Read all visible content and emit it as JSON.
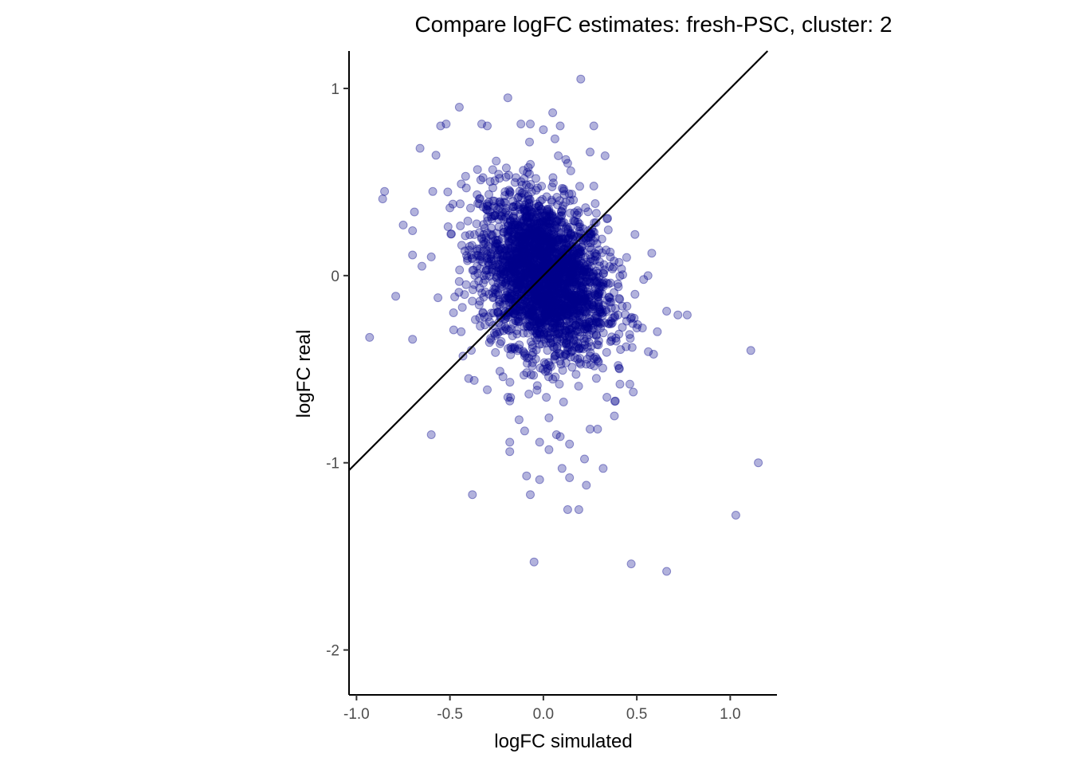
{
  "chart_data": {
    "type": "scatter",
    "title": "Compare logFC estimates: fresh-PSC, cluster: 2",
    "xlabel": "logFC simulated",
    "ylabel": "logFC real",
    "xlim": [
      -1.04,
      1.25
    ],
    "ylim": [
      -2.24,
      1.2
    ],
    "x_ticks": [
      -1.0,
      -0.5,
      0.0,
      0.5,
      1.0
    ],
    "x_tick_labels": [
      "-1.0",
      "-0.5",
      "0.0",
      "0.5",
      "1.0"
    ],
    "y_ticks": [
      -2,
      -1,
      0,
      1
    ],
    "y_tick_labels": [
      "-2",
      "-1",
      "0",
      "1"
    ],
    "grid": false,
    "legend": "none",
    "reference_line": {
      "slope": 1,
      "intercept": 0
    },
    "point_color": "#00008B",
    "point_alpha": 0.3,
    "line_color": "#000000",
    "outlier_points": [
      [
        0.2,
        1.05
      ],
      [
        -0.19,
        0.95
      ],
      [
        -0.45,
        0.9
      ],
      [
        0.05,
        0.87
      ],
      [
        -0.55,
        0.8
      ],
      [
        -0.52,
        0.81
      ],
      [
        -0.33,
        0.81
      ],
      [
        -0.12,
        0.81
      ],
      [
        0.27,
        0.8
      ],
      [
        -0.07,
        0.81
      ],
      [
        0.0,
        0.78
      ],
      [
        0.09,
        0.8
      ],
      [
        -0.66,
        0.68
      ],
      [
        -0.85,
        0.45
      ],
      [
        -0.86,
        0.41
      ],
      [
        -0.69,
        0.34
      ],
      [
        -0.75,
        0.27
      ],
      [
        -0.7,
        0.24
      ],
      [
        -0.7,
        0.11
      ],
      [
        -0.6,
        0.1
      ],
      [
        -0.65,
        0.05
      ],
      [
        -0.79,
        -0.11
      ],
      [
        -0.93,
        -0.33
      ],
      [
        -0.7,
        -0.34
      ],
      [
        -0.6,
        -0.85
      ],
      [
        -0.38,
        -1.17
      ],
      [
        -0.13,
        -0.77
      ],
      [
        -0.18,
        -0.89
      ],
      [
        -0.18,
        -0.94
      ],
      [
        -0.02,
        -0.89
      ],
      [
        0.03,
        -0.76
      ],
      [
        0.03,
        -0.93
      ],
      [
        -0.1,
        -0.83
      ],
      [
        0.07,
        -0.85
      ],
      [
        0.09,
        -0.86
      ],
      [
        -0.09,
        -1.07
      ],
      [
        -0.07,
        -1.17
      ],
      [
        -0.02,
        -1.09
      ],
      [
        0.1,
        -1.03
      ],
      [
        0.14,
        -1.08
      ],
      [
        0.14,
        -0.9
      ],
      [
        0.22,
        -0.98
      ],
      [
        0.25,
        -0.82
      ],
      [
        0.29,
        -0.82
      ],
      [
        0.32,
        -1.03
      ],
      [
        0.23,
        -1.12
      ],
      [
        0.13,
        -1.25
      ],
      [
        0.19,
        -1.25
      ],
      [
        -0.05,
        -1.53
      ],
      [
        0.47,
        -1.54
      ],
      [
        0.66,
        -1.58
      ],
      [
        1.03,
        -1.28
      ],
      [
        1.15,
        -1.0
      ],
      [
        1.11,
        -0.4
      ],
      [
        0.59,
        -0.42
      ],
      [
        0.77,
        -0.21
      ],
      [
        0.72,
        -0.21
      ],
      [
        0.66,
        -0.19
      ],
      [
        0.61,
        -0.3
      ],
      [
        0.5,
        -0.28
      ],
      [
        0.53,
        -0.28
      ],
      [
        0.49,
        -0.1
      ],
      [
        0.56,
        0.0
      ],
      [
        0.58,
        0.12
      ],
      [
        0.49,
        0.22
      ],
      [
        0.33,
        0.64
      ],
      [
        0.25,
        0.66
      ],
      [
        0.08,
        0.64
      ],
      [
        0.13,
        0.6
      ],
      [
        0.38,
        -0.75
      ],
      [
        -0.3,
        -0.61
      ],
      [
        -0.19,
        -0.65
      ],
      [
        -0.18,
        -0.67
      ],
      [
        -0.37,
        -0.56
      ],
      [
        -0.4,
        -0.55
      ],
      [
        -0.43,
        -0.43
      ],
      [
        -0.44,
        -0.3
      ],
      [
        -0.48,
        -0.29
      ],
      [
        0.34,
        -0.65
      ],
      [
        0.39,
        -0.35
      ],
      [
        0.4,
        -0.48
      ],
      [
        0.41,
        -0.58
      ],
      [
        0.13,
        0.23
      ],
      [
        0.12,
        0.62
      ],
      [
        -0.3,
        0.8
      ]
    ]
  }
}
